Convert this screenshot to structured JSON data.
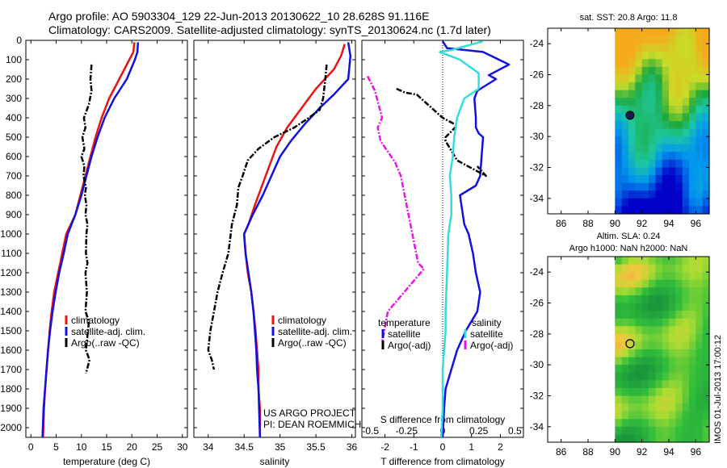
{
  "title": {
    "line1": "Argo profile: AO 5903304_129 22-Jun-2013 20130622_10 28.628S 91.116E",
    "line2": "Climatology: CARS2009. Satellite-adjusted climatology: synTS_20130624.nc (1.7d later)"
  },
  "colors": {
    "climatology": "#ee1111",
    "satellite": "#1111dd",
    "argo": "#000000",
    "sat_diff": "#33dddd",
    "argo_salt_diff": "#ee11ee",
    "frame": "#000000"
  },
  "chart_data": [
    {
      "type": "line",
      "name": "temperature",
      "xlabel": "temperature (deg C)",
      "xlim": [
        -1,
        31
      ],
      "ylim": [
        2050,
        0
      ],
      "xticks": [
        0,
        5,
        10,
        15,
        20,
        25,
        30
      ],
      "yticks": [
        0,
        100,
        200,
        300,
        400,
        500,
        600,
        700,
        800,
        900,
        1000,
        1100,
        1200,
        1300,
        1400,
        1500,
        1600,
        1700,
        1800,
        1900,
        2000
      ],
      "series": [
        {
          "name": "climatology",
          "style": "solid",
          "x": [
            20.5,
            20.3,
            19.5,
            17.5,
            15.5,
            14,
            12.8,
            11.8,
            10.8,
            9.8,
            8.8,
            7.9,
            7,
            6.2,
            5.4,
            4.6,
            4.1,
            3.7,
            3.4,
            3.1,
            2.8,
            2.6,
            2.4
          ],
          "y": [
            10,
            60,
            100,
            200,
            300,
            400,
            500,
            600,
            700,
            800,
            900,
            950,
            1000,
            1100,
            1200,
            1300,
            1400,
            1500,
            1600,
            1700,
            1800,
            1900,
            2050
          ]
        },
        {
          "name": "satellite-adj. clim.",
          "style": "solid",
          "x": [
            21.2,
            21.1,
            20.6,
            19,
            16.5,
            14.6,
            13.2,
            12,
            11,
            10,
            8.8,
            7.3,
            6.5,
            5.6,
            4.9,
            4.3,
            3.8,
            3.4,
            3.1,
            2.8,
            2.5,
            2.3
          ],
          "y": [
            10,
            60,
            100,
            200,
            300,
            400,
            500,
            600,
            700,
            800,
            900,
            1000,
            1100,
            1200,
            1300,
            1400,
            1500,
            1600,
            1700,
            1800,
            1900,
            2050
          ]
        },
        {
          "name": "Argo(..raw -QC)",
          "style": "dashdot",
          "x": [
            12,
            11.8,
            12,
            11.5,
            10.5,
            10.8,
            10.2,
            10.6,
            10,
            10.6,
            10.4,
            10.9,
            10.7,
            11,
            10.8,
            11.2,
            11,
            10.9,
            11.2,
            10.8,
            11.1,
            10.8,
            11.5,
            11.3,
            10.9,
            11.6,
            10.9
          ],
          "y": [
            125,
            200,
            260,
            330,
            400,
            450,
            500,
            560,
            600,
            650,
            700,
            760,
            800,
            850,
            900,
            950,
            1000,
            1100,
            1150,
            1200,
            1300,
            1400,
            1450,
            1500,
            1600,
            1650,
            1720
          ]
        }
      ],
      "legend": [
        "climatology",
        "satellite-adj. clim.",
        "Argo(..raw -QC)"
      ]
    },
    {
      "type": "line",
      "name": "salinity",
      "xlabel": "salinity",
      "xlim": [
        33.8,
        36.05
      ],
      "ylim": [
        2050,
        0
      ],
      "xticks": [
        34,
        34.5,
        35,
        35.5,
        36
      ],
      "xtick_labels": [
        "34",
        "34.5",
        "35",
        "35.5",
        "36"
      ],
      "series": [
        {
          "name": "climatology",
          "style": "solid",
          "x": [
            35.9,
            35.85,
            35.75,
            35.5,
            35.3,
            35.1,
            34.95,
            34.85,
            34.75,
            34.65,
            34.56,
            34.5,
            34.52,
            34.55,
            34.6,
            34.63,
            34.66,
            34.68,
            34.7,
            34.7,
            34.72,
            34.72
          ],
          "y": [
            20,
            80,
            150,
            250,
            350,
            450,
            550,
            650,
            750,
            850,
            950,
            1000,
            1100,
            1200,
            1300,
            1400,
            1500,
            1600,
            1700,
            1800,
            1900,
            2050
          ]
        },
        {
          "name": "satellite-adj. clim.",
          "style": "solid",
          "x": [
            35.95,
            35.98,
            35.95,
            35.75,
            35.55,
            35.35,
            35.15,
            35,
            34.88,
            34.76,
            34.62,
            34.5,
            34.52,
            34.56,
            34.6,
            34.63,
            34.65,
            34.67,
            34.68,
            34.7,
            34.72
          ],
          "y": [
            10,
            80,
            200,
            280,
            350,
            430,
            520,
            600,
            700,
            800,
            900,
            1000,
            1100,
            1200,
            1300,
            1400,
            1500,
            1600,
            1700,
            1800,
            2050
          ]
        },
        {
          "name": "Argo(..raw -QC)",
          "style": "dashdot",
          "x": [
            35.65,
            35.63,
            35.6,
            35.55,
            35.4,
            35.2,
            34.92,
            34.7,
            34.55,
            34.48,
            34.42,
            34.4,
            34.33,
            34.28,
            34.2,
            34.13,
            34.08,
            34.03,
            34,
            34.05,
            34.08
          ],
          "y": [
            125,
            200,
            300,
            360,
            400,
            450,
            500,
            560,
            620,
            700,
            760,
            850,
            950,
            1100,
            1200,
            1300,
            1400,
            1500,
            1600,
            1650,
            1700
          ]
        }
      ],
      "legend": [
        "climatology",
        "satellite-adj. clim.",
        "Argo(..raw -QC)"
      ],
      "annotation": [
        "US ARGO PROJECT",
        "PI: DEAN ROEMMICH"
      ]
    },
    {
      "type": "line",
      "name": "difference from climatology",
      "xlabel": "T difference from climatology",
      "xlabel_top": "S difference from climatology",
      "xlim": [
        -2.8,
        2.8
      ],
      "ylim": [
        2050,
        0
      ],
      "xticks": [
        -2,
        -1,
        0,
        1,
        2
      ],
      "xtick_labels": [
        "-2",
        "-1",
        "0",
        "1",
        "2"
      ],
      "xticks_salinity": [
        -0.5,
        -0.25,
        0,
        0.25,
        0.5
      ],
      "xtick_labels_salinity": [
        "-0.5",
        "-0.25",
        "0",
        "0.25",
        "0.5"
      ],
      "series": [
        {
          "name": "temperature satellite",
          "kind": "temperature",
          "style": "solid",
          "x": [
            0,
            0.15,
            1.4,
            2.3,
            1.6,
            1.85,
            1.2,
            1.1,
            1.15,
            1.15,
            1.25,
            1.4,
            1.35,
            1.3,
            1.15,
            0.6,
            0.65,
            0.75,
            0.9,
            1.05,
            1.15,
            1.3,
            1.2,
            0.8,
            0.5,
            0.3,
            0.1,
            0.05,
            0
          ],
          "y": [
            5,
            40,
            60,
            125,
            180,
            200,
            260,
            300,
            400,
            450,
            480,
            500,
            600,
            700,
            750,
            800,
            850,
            950,
            1000,
            1100,
            1200,
            1300,
            1400,
            1500,
            1600,
            1700,
            1800,
            1900,
            2050
          ]
        },
        {
          "name": "temperature Argo(-adj)",
          "kind": "temperature",
          "style": "dashdot",
          "x": [
            -1.6,
            -1.3,
            -0.9,
            0,
            0.5,
            0.1,
            0.1,
            0.5,
            1.5,
            1.2
          ],
          "y": [
            250,
            270,
            280,
            400,
            440,
            500,
            520,
            620,
            700,
            650
          ]
        },
        {
          "name": "salinity satellite",
          "kind": "salinity",
          "style": "solid",
          "x": [
            0.28,
            0.06,
            -0.02,
            0.12,
            0.25,
            0.25,
            0.15,
            0.1,
            0.08,
            0.07,
            0.05,
            0.06,
            0.06,
            0.04,
            0.03,
            0.02,
            0.02,
            0,
            0,
            -0.01
          ],
          "y": [
            5,
            50,
            60,
            100,
            170,
            250,
            300,
            400,
            500,
            600,
            700,
            800,
            900,
            1000,
            1200,
            1400,
            1500,
            1700,
            1900,
            2050
          ]
        },
        {
          "name": "salinity Argo(-adj)",
          "kind": "salinity",
          "style": "dashdot",
          "x": [
            -0.52,
            -0.47,
            -0.42,
            -0.45,
            -0.43,
            -0.33,
            -0.29,
            -0.17,
            -0.13,
            -0.38,
            -0.42
          ],
          "y": [
            185,
            260,
            400,
            450,
            520,
            630,
            700,
            1150,
            1180,
            1400,
            1560
          ]
        }
      ],
      "legend_headers": [
        "temperature",
        "salinity"
      ],
      "legend": [
        "satellite",
        "Argo(-adj)",
        "satellite",
        "Argo(-adj)"
      ]
    },
    {
      "type": "heatmap",
      "name": "sst map",
      "title": "sat. SST: 20.8  Argo: 11.8",
      "xlim": [
        85,
        97
      ],
      "ylim": [
        -35,
        -23
      ],
      "xticks": [
        86,
        88,
        90,
        92,
        94,
        96
      ],
      "yticks": [
        -24,
        -26,
        -28,
        -30,
        -32,
        -34
      ],
      "data_xlim": [
        90,
        97
      ],
      "argo_position": [
        91.116,
        -28.628
      ]
    },
    {
      "type": "heatmap",
      "name": "sla map",
      "title": "Altim. SLA: 0.24",
      "subtitle": "Argo h1000: NaN h2000: NaN",
      "xlim": [
        85,
        97
      ],
      "ylim": [
        -35,
        -23
      ],
      "xticks": [
        86,
        88,
        90,
        92,
        94,
        96
      ],
      "yticks": [
        -24,
        -26,
        -28,
        -30,
        -32,
        -34
      ],
      "data_xlim": [
        90,
        97
      ],
      "argo_position": [
        91.116,
        -28.628
      ]
    }
  ],
  "footer": "IMOS 01-Jul-2013 17:00:12"
}
